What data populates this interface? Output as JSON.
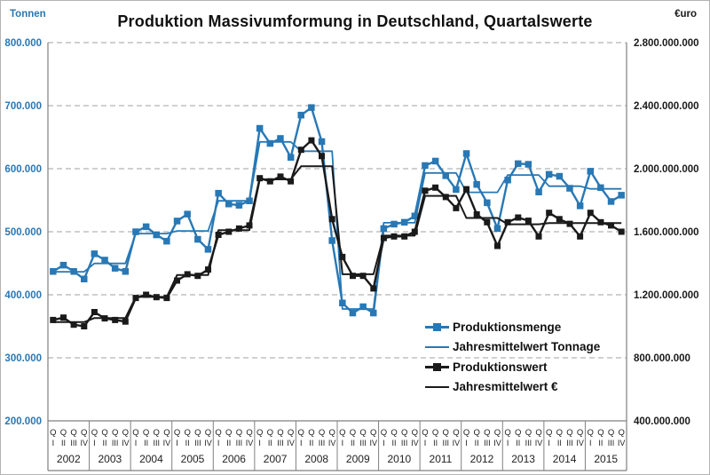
{
  "title": "Produktion Massivumformung in Deutschland, Quartalswerte",
  "axes": {
    "left_unit": "Tonnen",
    "right_unit": "€uro",
    "left_tick_labels": [
      "800.000",
      "700.000",
      "600.000",
      "500.000",
      "400.000",
      "300.000",
      "200.000"
    ],
    "right_tick_labels": [
      "2.800.000.000",
      "2.400.000.000",
      "2.000.000.000",
      "1.600.000.000",
      "1.200.000.000",
      "800.000.000",
      "400.000.000"
    ]
  },
  "colors": {
    "accent_blue": "#2878b5",
    "series_black": "#1a1a1a",
    "grid_gray": "#a0a0a0",
    "frame_gray": "#808080"
  },
  "chart_data": {
    "type": "line",
    "title": "Produktion Massivumformung in Deutschland, Quartalswerte",
    "grid": true,
    "legend_position": "inside-lower-right",
    "years": [
      "2002",
      "2003",
      "2004",
      "2005",
      "2006",
      "2007",
      "2008",
      "2009",
      "2010",
      "2011",
      "2012",
      "2013",
      "2014",
      "2015"
    ],
    "quarter_tick_top": "Q",
    "quarter_tick_bottom": [
      "I",
      "II",
      "III",
      "IV"
    ],
    "left_axis": {
      "label": "Tonnen",
      "min": 200000,
      "max": 800000,
      "tick_step": 100000
    },
    "right_axis": {
      "label": "€uro",
      "min": 400000000,
      "max": 2800000000,
      "tick_step": 400000000
    },
    "series": [
      {
        "name": "Produktionsmenge",
        "axis": "left",
        "color": "#2878b5",
        "marker": "square",
        "annual": false,
        "values": [
          437000,
          447000,
          437000,
          425000,
          465000,
          455000,
          442000,
          437000,
          500000,
          508000,
          495000,
          485000,
          517000,
          528000,
          488000,
          472000,
          561000,
          544000,
          542000,
          549000,
          664000,
          640000,
          648000,
          618000,
          685000,
          697000,
          643000,
          486000,
          387000,
          371000,
          381000,
          371000,
          505000,
          512000,
          515000,
          525000,
          605000,
          612000,
          589000,
          567000,
          624000,
          575000,
          546000,
          505000,
          582000,
          608000,
          607000,
          563000,
          591000,
          588000,
          569000,
          541000,
          596000,
          570000,
          548000,
          558000
        ]
      },
      {
        "name": "Jahresmittelwert Tonnage",
        "axis": "left",
        "color": "#2878b5",
        "marker": "none",
        "annual": true,
        "values": [
          436500,
          449750,
          497000,
          501250,
          549000,
          642500,
          627750,
          377500,
          514250,
          593250,
          562500,
          590000,
          572250,
          568000
        ]
      },
      {
        "name": "Produktionswert",
        "axis": "right",
        "color": "#1a1a1a",
        "marker": "square",
        "annual": false,
        "values": [
          1040000000,
          1055000000,
          1010000000,
          1000000000,
          1090000000,
          1050000000,
          1040000000,
          1030000000,
          1180000000,
          1200000000,
          1185000000,
          1180000000,
          1290000000,
          1330000000,
          1320000000,
          1360000000,
          1580000000,
          1600000000,
          1620000000,
          1640000000,
          1940000000,
          1920000000,
          1950000000,
          1920000000,
          2120000000,
          2180000000,
          2080000000,
          1680000000,
          1440000000,
          1320000000,
          1320000000,
          1240000000,
          1560000000,
          1570000000,
          1570000000,
          1600000000,
          1860000000,
          1880000000,
          1820000000,
          1750000000,
          1870000000,
          1710000000,
          1660000000,
          1510000000,
          1660000000,
          1690000000,
          1670000000,
          1570000000,
          1720000000,
          1680000000,
          1650000000,
          1570000000,
          1720000000,
          1660000000,
          1640000000,
          1600000000
        ]
      },
      {
        "name": "Jahresmittelwert €",
        "axis": "right",
        "color": "#1a1a1a",
        "marker": "none",
        "annual": true,
        "values": [
          1026250000,
          1052500000,
          1186250000,
          1325000000,
          1610000000,
          1932500000,
          2015000000,
          1330000000,
          1575000000,
          1827500000,
          1687500000,
          1647500000,
          1655000000,
          1655000000
        ]
      }
    ]
  }
}
